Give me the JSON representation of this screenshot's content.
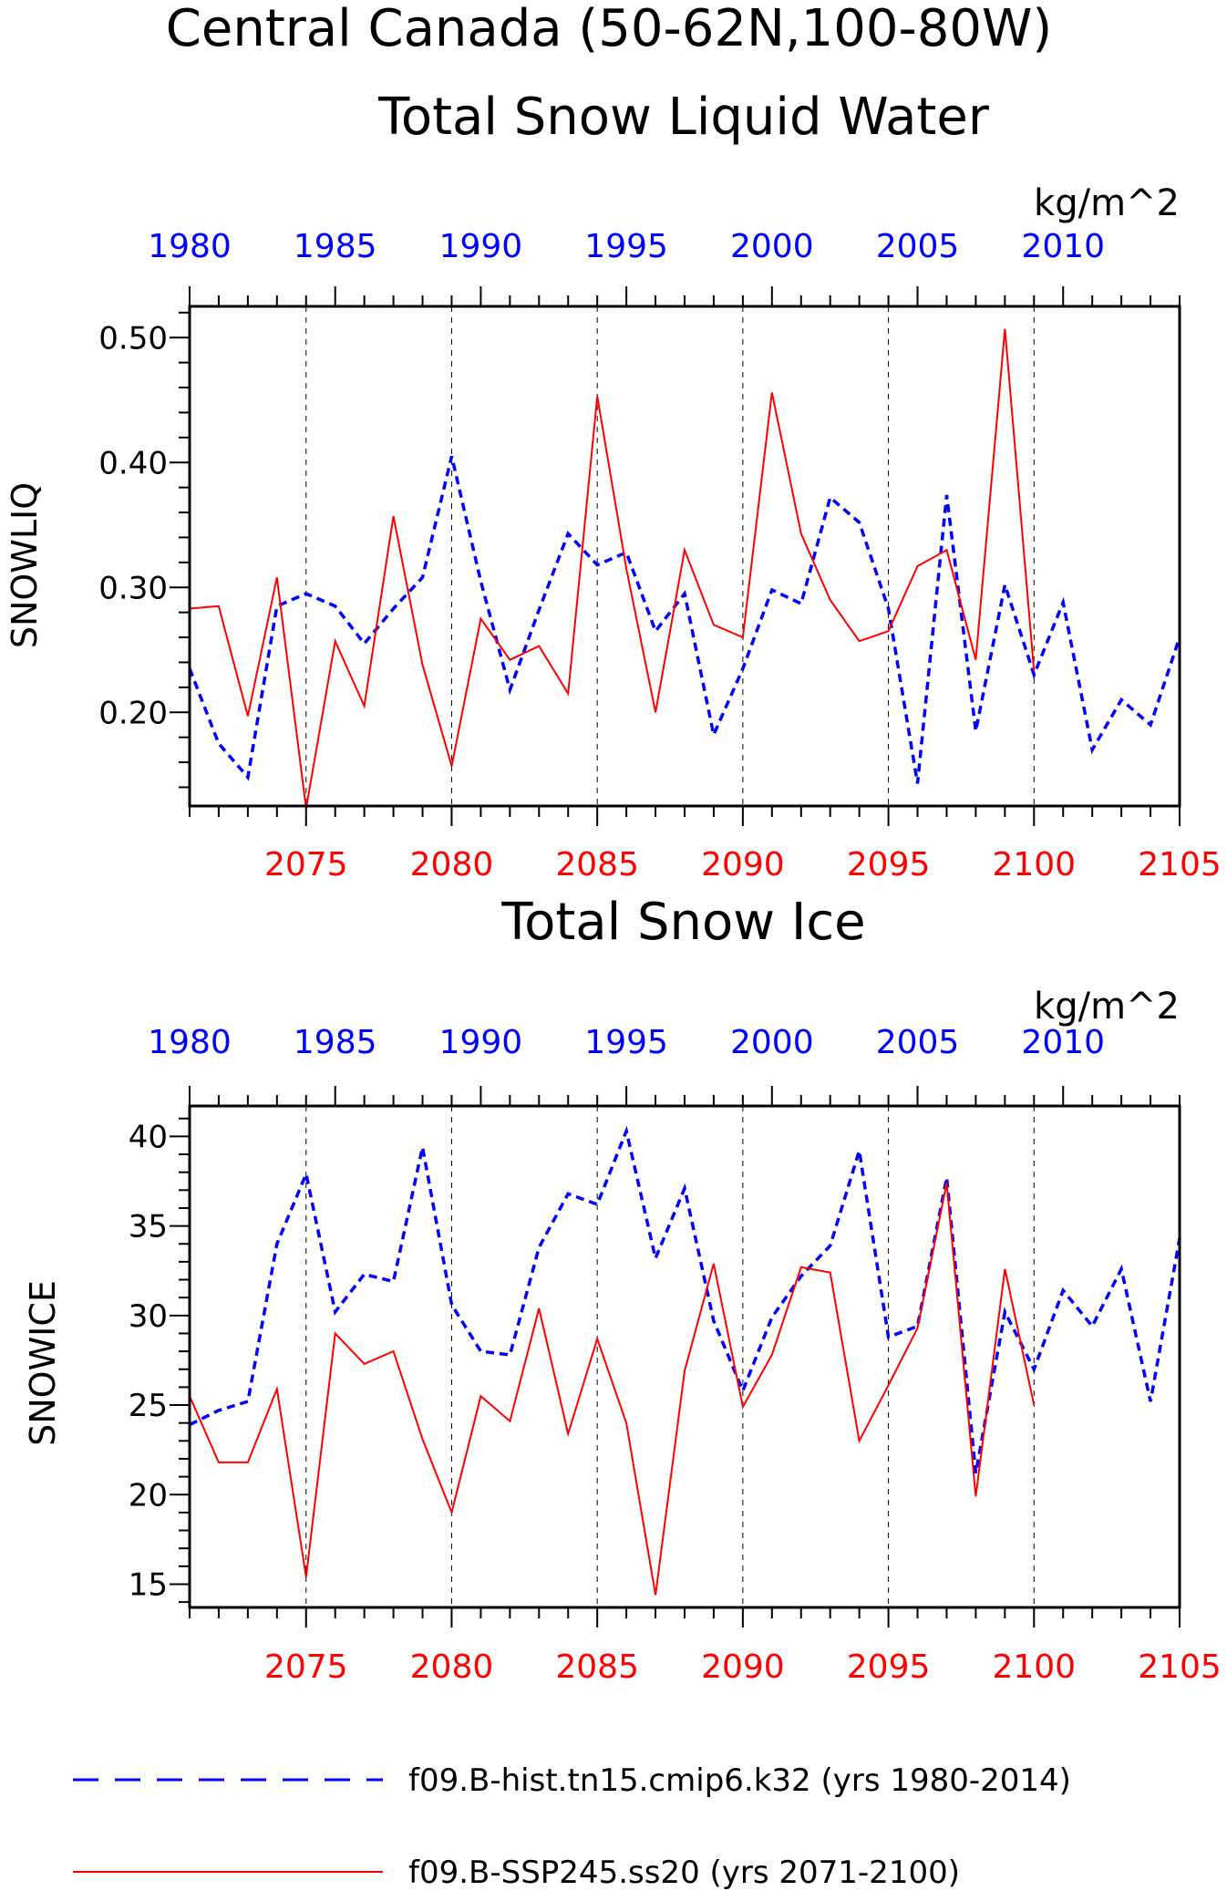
{
  "title": {
    "line1": "Central Canada (50-62N,100-80W)",
    "panel1": "Total Snow Liquid Water",
    "panel2": "Total Snow Ice"
  },
  "colors": {
    "hist": "#0000ff",
    "ssp": "#ff0000",
    "axis": "#000000"
  },
  "legend": {
    "hist": "f09.B-hist.tn15.cmip6.k32 (yrs 1980-2014)",
    "ssp": "f09.B-SSP245.ss20 (yrs 2071-2100)"
  },
  "chart_data": [
    {
      "type": "line",
      "title": "Total Snow Liquid Water",
      "ylabel": "SNOWLIQ",
      "unit": "kg/m^2",
      "ylim": [
        0.125,
        0.525
      ],
      "yticks": [
        "0.20",
        "0.30",
        "0.40",
        "0.50"
      ],
      "ytick_values": [
        0.2,
        0.3,
        0.4,
        0.5
      ],
      "bottom_axis": {
        "range": [
          2071,
          2105
        ],
        "tick_labels": [
          "2075",
          "2080",
          "2085",
          "2090",
          "2095",
          "2100",
          "2105"
        ]
      },
      "top_axis": {
        "range": [
          1980,
          2014
        ],
        "tick_labels": [
          "1980",
          "1985",
          "1990",
          "1995",
          "2000",
          "2005",
          "2010"
        ]
      },
      "grid": "vertical dashed at labeled years",
      "series": [
        {
          "name": "f09.B-hist.tn15.cmip6.k32 (yrs 1980-2014)",
          "axis": "top",
          "style": "dashed",
          "x": [
            1980,
            1981,
            1982,
            1983,
            1984,
            1985,
            1986,
            1987,
            1988,
            1989,
            1990,
            1991,
            1992,
            1993,
            1994,
            1995,
            1996,
            1997,
            1998,
            1999,
            2000,
            2001,
            2002,
            2003,
            2004,
            2005,
            2006,
            2007,
            2008,
            2009,
            2010,
            2011,
            2012,
            2013,
            2014
          ],
          "values": [
            0.235,
            0.175,
            0.148,
            0.285,
            0.295,
            0.285,
            0.255,
            0.283,
            0.308,
            0.405,
            0.305,
            0.218,
            0.282,
            0.343,
            0.318,
            0.328,
            0.265,
            0.295,
            0.182,
            0.235,
            0.298,
            0.287,
            0.372,
            0.352,
            0.283,
            0.143,
            0.374,
            0.185,
            0.302,
            0.23,
            0.288,
            0.17,
            0.21,
            0.19,
            0.26
          ]
        },
        {
          "name": "f09.B-SSP245.ss20 (yrs 2071-2100)",
          "axis": "bottom",
          "style": "solid",
          "x": [
            2071,
            2072,
            2073,
            2074,
            2075,
            2076,
            2077,
            2078,
            2079,
            2080,
            2081,
            2082,
            2083,
            2084,
            2085,
            2086,
            2087,
            2088,
            2089,
            2090,
            2091,
            2092,
            2093,
            2094,
            2095,
            2096,
            2097,
            2098,
            2099,
            2100
          ],
          "values": [
            0.283,
            0.285,
            0.197,
            0.308,
            0.123,
            0.257,
            0.205,
            0.357,
            0.238,
            0.157,
            0.275,
            0.242,
            0.253,
            0.215,
            0.453,
            0.315,
            0.2,
            0.33,
            0.27,
            0.26,
            0.456,
            0.343,
            0.29,
            0.257,
            0.265,
            0.317,
            0.33,
            0.242,
            0.507,
            0.233
          ]
        }
      ]
    },
    {
      "type": "line",
      "title": "Total Snow Ice",
      "ylabel": "SNOWICE",
      "unit": "kg/m^2",
      "ylim": [
        13.7,
        41.7
      ],
      "yticks": [
        "15",
        "20",
        "25",
        "30",
        "35",
        "40"
      ],
      "ytick_values": [
        15,
        20,
        25,
        30,
        35,
        40
      ],
      "bottom_axis": {
        "range": [
          2071,
          2105
        ],
        "tick_labels": [
          "2075",
          "2080",
          "2085",
          "2090",
          "2095",
          "2100",
          "2105"
        ]
      },
      "top_axis": {
        "range": [
          1980,
          2014
        ],
        "tick_labels": [
          "1980",
          "1985",
          "1990",
          "1995",
          "2000",
          "2005",
          "2010"
        ]
      },
      "grid": "vertical dashed at labeled years",
      "series": [
        {
          "name": "f09.B-hist.tn15.cmip6.k32 (yrs 1980-2014)",
          "axis": "top",
          "style": "dashed",
          "x": [
            1980,
            1981,
            1982,
            1983,
            1984,
            1985,
            1986,
            1987,
            1988,
            1989,
            1990,
            1991,
            1992,
            1993,
            1994,
            1995,
            1996,
            1997,
            1998,
            1999,
            2000,
            2001,
            2002,
            2003,
            2004,
            2005,
            2006,
            2007,
            2008,
            2009,
            2010,
            2011,
            2012,
            2013,
            2014
          ],
          "values": [
            23.9,
            24.7,
            25.2,
            34.0,
            37.9,
            30.2,
            32.3,
            31.9,
            39.4,
            30.6,
            28.0,
            27.8,
            33.8,
            36.8,
            36.2,
            40.3,
            33.2,
            37.1,
            29.7,
            25.8,
            29.9,
            32.2,
            33.9,
            39.2,
            28.8,
            29.4,
            37.7,
            21.2,
            30.2,
            27.0,
            31.4,
            29.4,
            32.6,
            25.2,
            34.3
          ]
        },
        {
          "name": "f09.B-SSP245.ss20 (yrs 2071-2100)",
          "axis": "bottom",
          "style": "solid",
          "x": [
            2071,
            2072,
            2073,
            2074,
            2075,
            2076,
            2077,
            2078,
            2079,
            2080,
            2081,
            2082,
            2083,
            2084,
            2085,
            2086,
            2087,
            2088,
            2089,
            2090,
            2091,
            2092,
            2093,
            2094,
            2095,
            2096,
            2097,
            2098,
            2099,
            2100
          ],
          "values": [
            25.5,
            21.8,
            21.8,
            25.9,
            15.4,
            29.0,
            27.3,
            28.0,
            23.1,
            19.0,
            25.5,
            24.1,
            30.4,
            23.4,
            28.7,
            24.0,
            14.4,
            26.9,
            32.9,
            24.9,
            27.8,
            32.7,
            32.4,
            23.0,
            26.1,
            29.3,
            37.4,
            19.9,
            32.6,
            25.0
          ]
        }
      ]
    }
  ]
}
